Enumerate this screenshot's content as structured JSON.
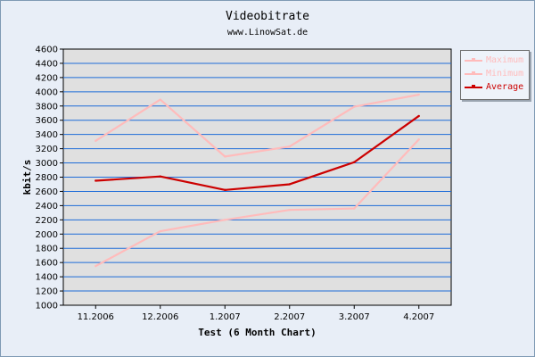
{
  "title": "Videobitrate",
  "subtitle": "www.LinowSat.de",
  "chart_data": {
    "type": "line",
    "title": "Videobitrate",
    "subtitle": "www.LinowSat.de",
    "xlabel": "Test (6 Month Chart)",
    "ylabel": "kbit/s",
    "categories": [
      "11.2006",
      "12.2006",
      "1.2007",
      "2.2007",
      "3.2007",
      "4.2007"
    ],
    "ylim": [
      1000,
      4600
    ],
    "yticks": [
      1000,
      1200,
      1400,
      1600,
      1800,
      2000,
      2200,
      2400,
      2600,
      2800,
      3000,
      3200,
      3400,
      3600,
      3800,
      4000,
      4200,
      4400,
      4600
    ],
    "grid": true,
    "legend_position": "top-right",
    "series": [
      {
        "name": "Maximum",
        "color": "#ffbbbb",
        "values": [
          3310,
          3890,
          3090,
          3230,
          3790,
          3960
        ]
      },
      {
        "name": "Minimum",
        "color": "#ffbbbb",
        "values": [
          1550,
          2040,
          2200,
          2340,
          2360,
          3330
        ]
      },
      {
        "name": "Average",
        "color": "#cc0000",
        "values": [
          2750,
          2810,
          2620,
          2700,
          3010,
          3660
        ]
      }
    ],
    "plot_background": "#e0e0e0",
    "grid_color": "#1e6cd8"
  }
}
